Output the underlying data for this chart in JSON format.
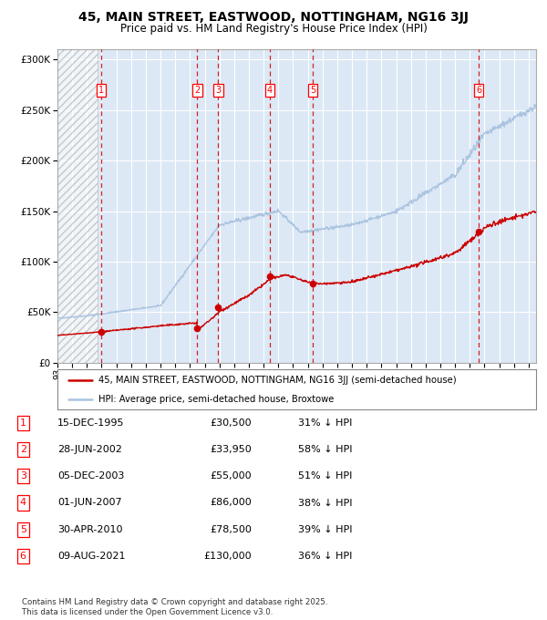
{
  "title": "45, MAIN STREET, EASTWOOD, NOTTINGHAM, NG16 3JJ",
  "subtitle": "Price paid vs. HM Land Registry's House Price Index (HPI)",
  "title_fontsize": 10,
  "subtitle_fontsize": 8.5,
  "hpi_color": "#aac4e0",
  "price_color": "#cc0000",
  "dot_color": "#cc0000",
  "xlim_start": 1993.0,
  "xlim_end": 2025.5,
  "ylim_min": 0,
  "ylim_max": 310000,
  "transactions": [
    {
      "num": 1,
      "date": 1995.96,
      "price": 30500
    },
    {
      "num": 2,
      "date": 2002.49,
      "price": 33950
    },
    {
      "num": 3,
      "date": 2003.92,
      "price": 55000
    },
    {
      "num": 4,
      "date": 2007.41,
      "price": 86000
    },
    {
      "num": 5,
      "date": 2010.33,
      "price": 78500
    },
    {
      "num": 6,
      "date": 2021.6,
      "price": 130000
    }
  ],
  "legend_line1": "45, MAIN STREET, EASTWOOD, NOTTINGHAM, NG16 3JJ (semi-detached house)",
  "legend_line2": "HPI: Average price, semi-detached house, Broxtowe",
  "table_rows": [
    {
      "num": 1,
      "date": "15-DEC-1995",
      "price": "£30,500",
      "hpi": "31% ↓ HPI"
    },
    {
      "num": 2,
      "date": "28-JUN-2002",
      "price": "£33,950",
      "hpi": "58% ↓ HPI"
    },
    {
      "num": 3,
      "date": "05-DEC-2003",
      "price": "£55,000",
      "hpi": "51% ↓ HPI"
    },
    {
      "num": 4,
      "date": "01-JUN-2007",
      "price": "£86,000",
      "hpi": "38% ↓ HPI"
    },
    {
      "num": 5,
      "date": "30-APR-2010",
      "price": "£78,500",
      "hpi": "39% ↓ HPI"
    },
    {
      "num": 6,
      "date": "09-AUG-2021",
      "price": "£130,000",
      "hpi": "36% ↓ HPI"
    }
  ],
  "footnote1": "Contains HM Land Registry data © Crown copyright and database right 2025.",
  "footnote2": "This data is licensed under the Open Government Licence v3.0.",
  "hatch_end": 1995.75,
  "bg_color": "#dce8f5",
  "grid_color": "#ffffff"
}
